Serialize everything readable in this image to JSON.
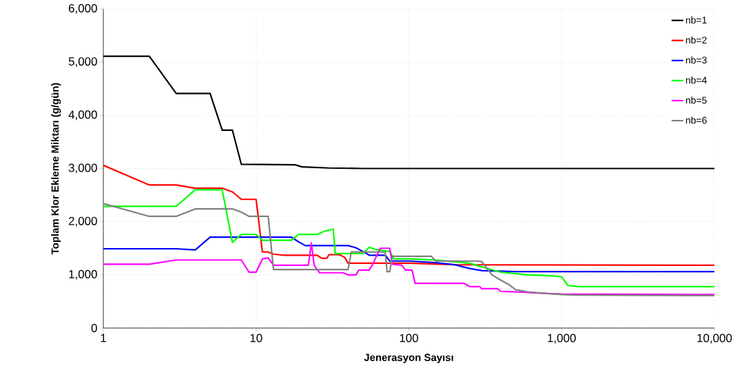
{
  "chart_data": {
    "type": "line",
    "xlabel": "Jenerasyon Sayısı",
    "ylabel": "Toplam Klor Ekleme Miktarı (g/gün)",
    "log": "x",
    "grid": true,
    "legend": "top right",
    "line_style": "solid",
    "xlim": [
      1,
      10000
    ],
    "xticks": [
      1,
      10,
      100,
      {
        "value": 1000,
        "label": "1,000"
      },
      {
        "value": 10000,
        "label": "10,000"
      }
    ],
    "ylim": [
      0,
      6000
    ],
    "yticks": [
      0,
      {
        "value": 1000,
        "label": "1,000"
      },
      {
        "value": 2000,
        "label": "2,000"
      },
      {
        "value": 3000,
        "label": "3,000"
      },
      {
        "value": 4000,
        "label": "4,000"
      },
      {
        "value": 5000,
        "label": "5,000"
      },
      {
        "value": 6000,
        "label": "6,000"
      }
    ],
    "series": [
      {
        "name": "nb=1",
        "color": "#000000",
        "x": [
          1,
          2,
          3,
          5,
          6,
          7,
          8,
          18,
          19,
          20,
          30,
          50,
          10000
        ],
        "values": [
          5110,
          5110,
          4410,
          4410,
          3720,
          3720,
          3080,
          3070,
          3050,
          3030,
          3010,
          3000,
          3000
        ]
      },
      {
        "name": "nb=2",
        "color": "#ff0000",
        "x": [
          1,
          2,
          3,
          4,
          6,
          7,
          8,
          10,
          11,
          12,
          13,
          15,
          25,
          27,
          29,
          30,
          35,
          38,
          40,
          100,
          200,
          10000
        ],
        "values": [
          3060,
          2690,
          2690,
          2630,
          2630,
          2560,
          2420,
          2420,
          1430,
          1430,
          1390,
          1370,
          1370,
          1310,
          1310,
          1380,
          1380,
          1330,
          1220,
          1220,
          1190,
          1180
        ]
      },
      {
        "name": "nb=3",
        "color": "#0000ff",
        "x": [
          1,
          3,
          4,
          5,
          17,
          19,
          21,
          40,
          45,
          50,
          55,
          70,
          75,
          100,
          150,
          200,
          250,
          300,
          500,
          10000
        ],
        "values": [
          1490,
          1490,
          1470,
          1710,
          1710,
          1620,
          1550,
          1550,
          1510,
          1440,
          1370,
          1370,
          1260,
          1260,
          1230,
          1190,
          1120,
          1080,
          1060,
          1060
        ]
      },
      {
        "name": "nb=4",
        "color": "#00ff00",
        "x": [
          1,
          3,
          4,
          6,
          7,
          8,
          10,
          11,
          17,
          19,
          25,
          28,
          32,
          33,
          50,
          55,
          60,
          75,
          80,
          100,
          150,
          250,
          300,
          400,
          600,
          900,
          1000,
          1100,
          1300,
          10000
        ],
        "values": [
          2290,
          2290,
          2600,
          2600,
          1610,
          1760,
          1760,
          1650,
          1650,
          1760,
          1760,
          1820,
          1860,
          1400,
          1400,
          1520,
          1480,
          1440,
          1300,
          1300,
          1280,
          1220,
          1150,
          1050,
          1000,
          980,
          960,
          800,
          780,
          780
        ]
      },
      {
        "name": "nb=5",
        "color": "#ff00ff",
        "x": [
          1,
          2,
          3,
          8,
          9,
          10,
          11,
          12,
          13,
          22,
          23,
          24,
          26,
          37,
          40,
          45,
          47,
          55,
          58,
          65,
          75,
          78,
          90,
          95,
          105,
          110,
          230,
          250,
          290,
          300,
          380,
          400,
          600,
          800,
          1000,
          10000
        ],
        "values": [
          1200,
          1200,
          1280,
          1280,
          1050,
          1050,
          1300,
          1320,
          1180,
          1180,
          1600,
          1180,
          1040,
          1040,
          1000,
          1000,
          1090,
          1090,
          1200,
          1500,
          1500,
          1200,
          1180,
          1090,
          1090,
          840,
          840,
          780,
          780,
          740,
          740,
          690,
          670,
          650,
          640,
          630
        ]
      },
      {
        "name": "nb=6",
        "color": "#808080",
        "x": [
          1,
          2,
          3,
          4,
          7,
          8,
          9,
          12,
          13,
          40,
          42,
          70,
          72,
          75,
          78,
          140,
          150,
          280,
          300,
          350,
          400,
          450,
          500,
          600,
          800,
          1000,
          1200,
          10000
        ],
        "values": [
          2340,
          2100,
          2100,
          2240,
          2240,
          2180,
          2100,
          2100,
          1100,
          1100,
          1430,
          1430,
          1060,
          1060,
          1350,
          1350,
          1260,
          1260,
          1250,
          1000,
          900,
          820,
          720,
          680,
          650,
          630,
          620,
          610
        ]
      }
    ]
  }
}
